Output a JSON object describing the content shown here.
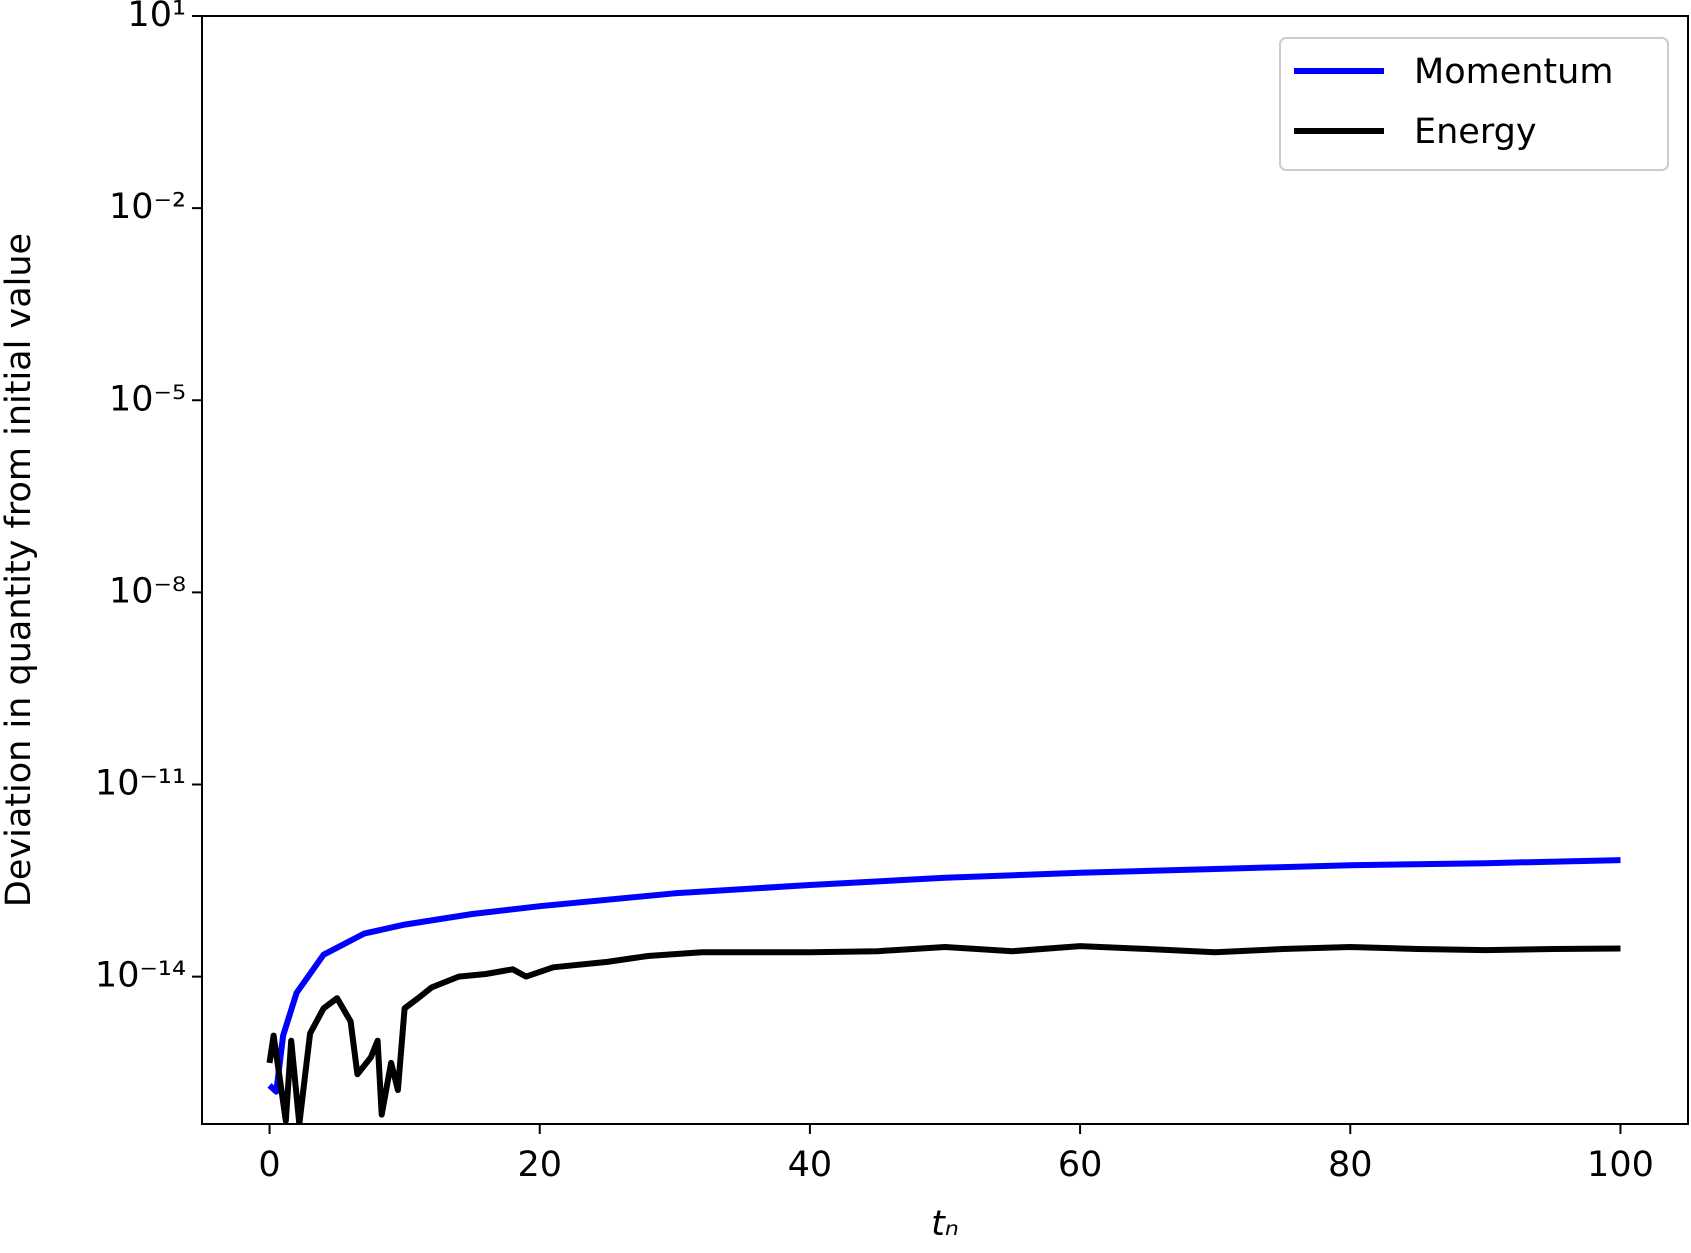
{
  "chart_data": {
    "type": "line",
    "xlabel": "tₙ",
    "ylabel": "Deviation in quantity from initial value",
    "xlim": [
      -5,
      105
    ],
    "xticks": [
      0,
      20,
      40,
      60,
      80,
      100
    ],
    "ylim": [
      5e-17,
      10
    ],
    "yticks": [
      {
        "value": 10,
        "label": "10¹"
      },
      {
        "value": 0.01,
        "label": "10⁻²"
      },
      {
        "value": 1e-05,
        "label": "10⁻⁵"
      },
      {
        "value": 1e-08,
        "label": "10⁻⁸"
      },
      {
        "value": 1e-11,
        "label": "10⁻¹¹"
      },
      {
        "value": 1e-14,
        "label": "10⁻¹⁴"
      }
    ],
    "log_y": true,
    "grid": false,
    "legend": "upper right",
    "series": [
      {
        "name": "Momentum",
        "color": "#0000ff",
        "x": [
          0,
          0.5,
          1,
          2,
          4,
          7,
          10,
          15,
          20,
          30,
          40,
          50,
          60,
          70,
          80,
          90,
          100
        ],
        "values": [
          2e-16,
          1.6e-16,
          1.2e-15,
          5.6e-15,
          2.2e-14,
          4.7e-14,
          6.5e-14,
          9.5e-14,
          1.26e-13,
          2e-13,
          2.7e-13,
          3.5e-13,
          4.2e-13,
          4.8e-13,
          5.5e-13,
          5.9e-13,
          6.6e-13
        ]
      },
      {
        "name": "Energy",
        "color": "#000000",
        "x": [
          0,
          0.3,
          0.8,
          1.2,
          1.6,
          2.2,
          3,
          4,
          5,
          6,
          6.5,
          7.5,
          8,
          8.3,
          9,
          9.5,
          10,
          11,
          12,
          14,
          16,
          18,
          19,
          21,
          25,
          28,
          32,
          36,
          40,
          45,
          50,
          55,
          60,
          65,
          70,
          75,
          80,
          85,
          90,
          95,
          100
        ],
        "values": [
          4.5e-16,
          1.2e-15,
          2.2e-16,
          5.6e-17,
          1e-15,
          5e-17,
          1.3e-15,
          3.2e-15,
          4.6e-15,
          2e-15,
          3e-16,
          5.5e-16,
          1e-15,
          7e-17,
          4.5e-16,
          1.7e-16,
          3.2e-15,
          4.6e-15,
          6.8e-15,
          1e-14,
          1.1e-14,
          1.3e-14,
          1e-14,
          1.4e-14,
          1.7e-14,
          2.1e-14,
          2.4e-14,
          2.4e-14,
          2.4e-14,
          2.5e-14,
          2.9e-14,
          2.5e-14,
          3e-14,
          2.7e-14,
          2.4e-14,
          2.7e-14,
          2.9e-14,
          2.7e-14,
          2.6e-14,
          2.7e-14,
          2.75e-14
        ]
      }
    ]
  }
}
